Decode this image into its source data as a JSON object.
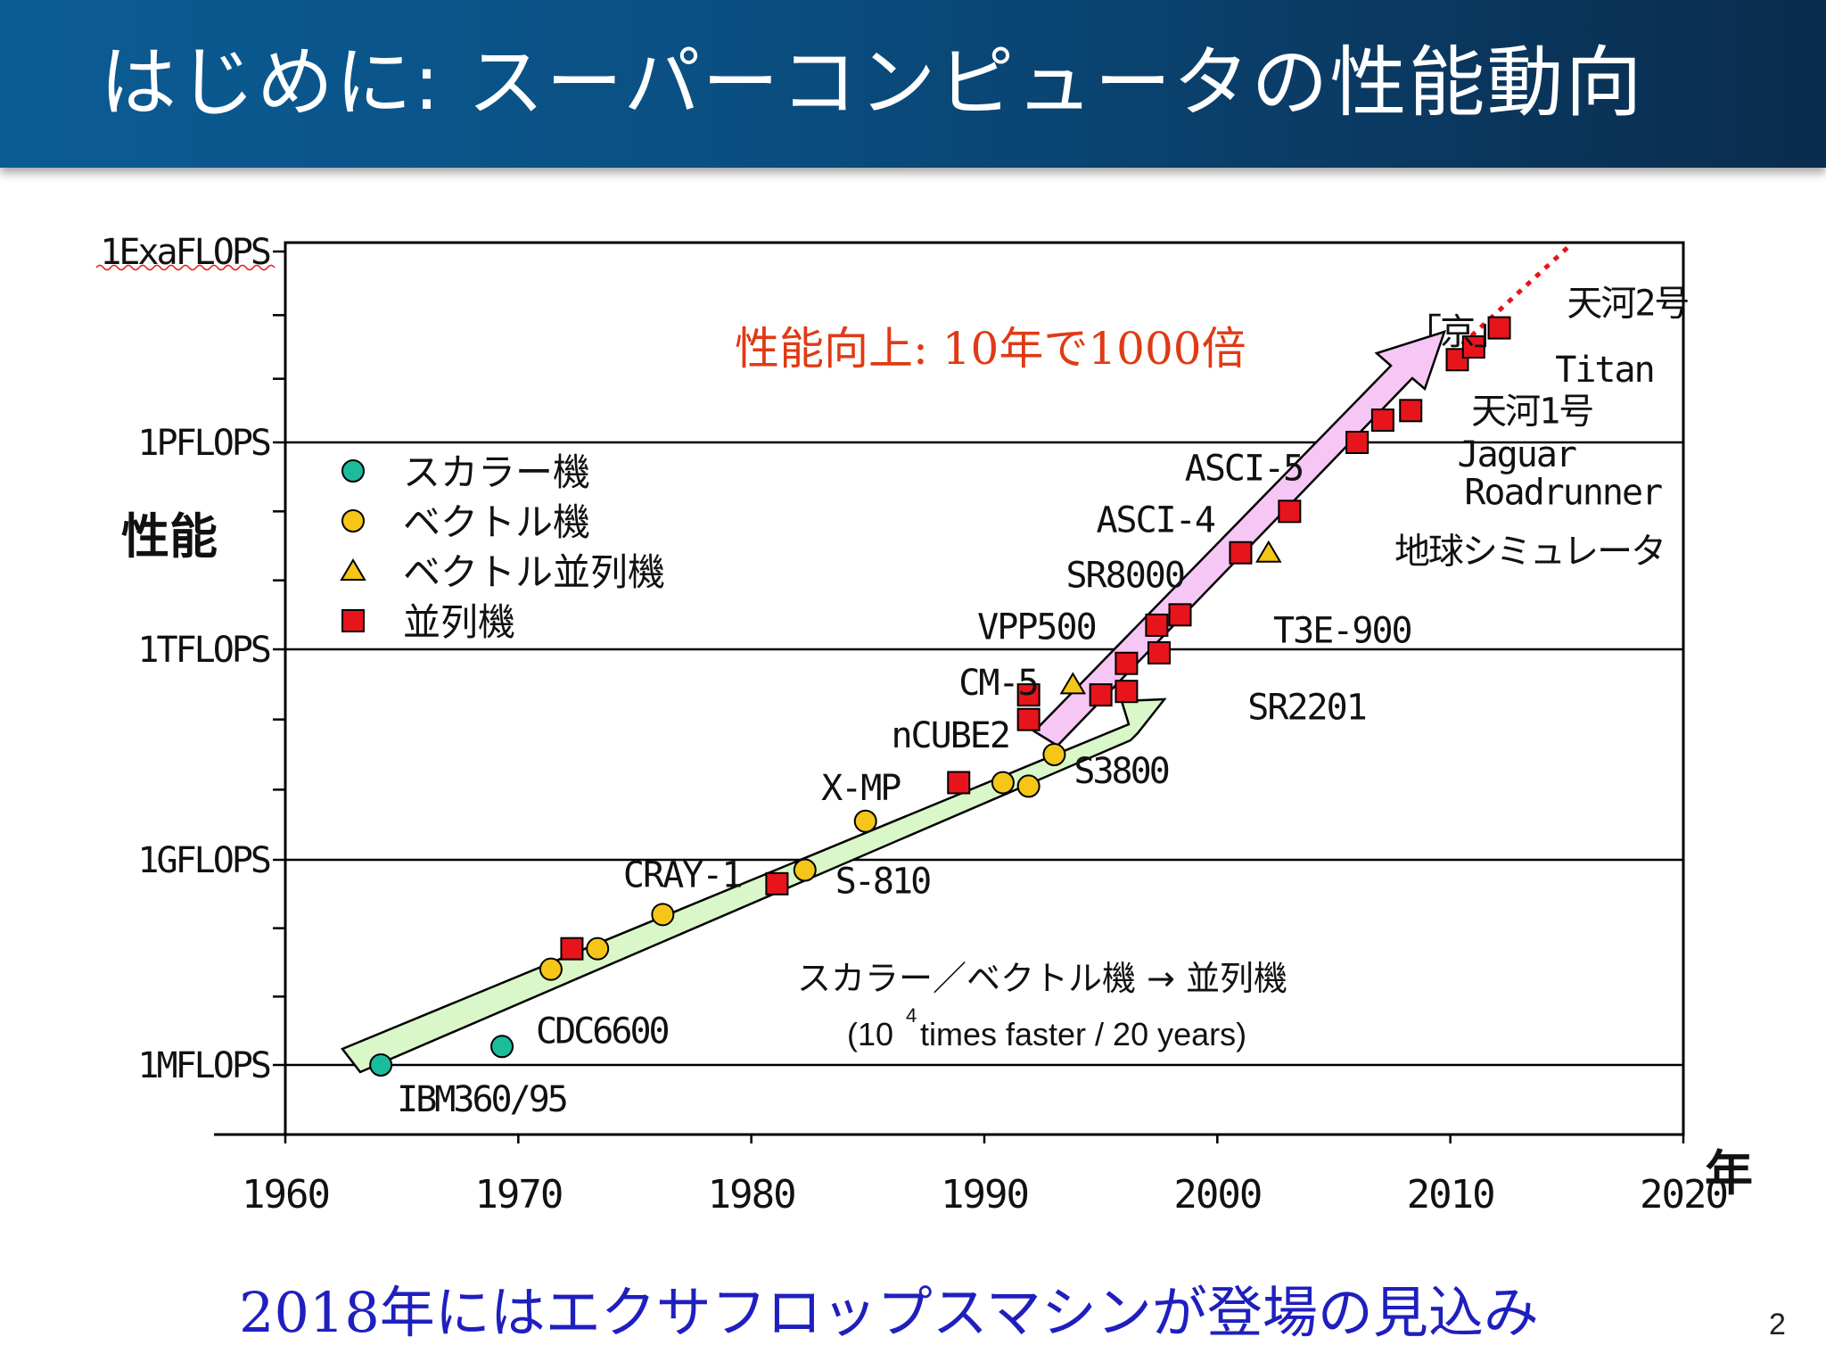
{
  "slide": {
    "title": "はじめに: スーパーコンピュータの性能動向",
    "footer": "2018年にはエクサフロップスマシンが登場の見込み",
    "page_number": "2",
    "colors": {
      "title_bg": "#0b5c94",
      "scalar": "#1abc9c",
      "vector": "#f5c518",
      "vector_parallel": "#f5c518",
      "parallel": "#e8141c",
      "green_arrow": "#d9f7c8",
      "pink_arrow": "#f6c6f4",
      "headline": "#e03a14",
      "footer": "#1f1fbf"
    }
  },
  "chart_data": {
    "type": "scatter",
    "title": "性能向上: 10年で1000倍",
    "xlabel": "年",
    "ylabel": "性能",
    "x_ticks": [
      "1960",
      "1970",
      "1980",
      "1990",
      "2000",
      "2010",
      "2020"
    ],
    "xlim": [
      1960,
      2020
    ],
    "y_ticks": [
      {
        "label": "1MFLOPS",
        "exp": 6
      },
      {
        "label": "1GFLOPS",
        "exp": 9
      },
      {
        "label": "1TFLOPS",
        "exp": 12
      },
      {
        "label": "1PFLOPS",
        "exp": 15
      },
      {
        "label": "1ExaFLOPS",
        "exp": 18
      }
    ],
    "ylim_exp": [
      5,
      18
    ],
    "legend": [
      {
        "name": "スカラー機",
        "marker": "circle",
        "kind": "scalar"
      },
      {
        "name": "ベクトル機",
        "marker": "circle",
        "kind": "vector"
      },
      {
        "name": "ベクトル並列機",
        "marker": "triangle",
        "kind": "vector_parallel"
      },
      {
        "name": "並列機",
        "marker": "square",
        "kind": "parallel"
      }
    ],
    "points": [
      {
        "label": "IBM360/95",
        "year": 1964.1,
        "exp": 6.0,
        "kind": "scalar"
      },
      {
        "label": "CDC6600",
        "year": 1969.3,
        "exp": 6.27,
        "kind": "scalar"
      },
      {
        "label": "",
        "year": 1971.4,
        "exp": 7.4,
        "kind": "vector"
      },
      {
        "label": "",
        "year": 1973.4,
        "exp": 7.7,
        "kind": "vector"
      },
      {
        "label": "",
        "year": 1976.2,
        "exp": 8.2,
        "kind": "vector"
      },
      {
        "label": "",
        "year": 1972.3,
        "exp": 7.7,
        "kind": "parallel"
      },
      {
        "label": "",
        "year": 1981.1,
        "exp": 8.65,
        "kind": "parallel"
      },
      {
        "label": "S-810",
        "year": 1982.3,
        "exp": 8.85,
        "kind": "vector"
      },
      {
        "label": "",
        "year": 1984.9,
        "exp": 9.55,
        "kind": "vector"
      },
      {
        "label": "",
        "year": 1988.9,
        "exp": 10.1,
        "kind": "parallel"
      },
      {
        "label": "",
        "year": 1990.8,
        "exp": 10.1,
        "kind": "vector"
      },
      {
        "label": "",
        "year": 1991.9,
        "exp": 10.05,
        "kind": "vector"
      },
      {
        "label": "S3800",
        "year": 1993.0,
        "exp": 10.5,
        "kind": "vector"
      },
      {
        "label": "",
        "year": 1991.9,
        "exp": 11.0,
        "kind": "parallel"
      },
      {
        "label": "",
        "year": 1991.9,
        "exp": 11.35,
        "kind": "parallel"
      },
      {
        "label": "",
        "year": 1993.8,
        "exp": 11.5,
        "kind": "vector_parallel"
      },
      {
        "label": "",
        "year": 1995.0,
        "exp": 11.35,
        "kind": "parallel"
      },
      {
        "label": "",
        "year": 1996.1,
        "exp": 11.4,
        "kind": "parallel"
      },
      {
        "label": "",
        "year": 1996.1,
        "exp": 11.8,
        "kind": "parallel"
      },
      {
        "label": "",
        "year": 1997.5,
        "exp": 11.95,
        "kind": "parallel"
      },
      {
        "label": "",
        "year": 1997.4,
        "exp": 12.35,
        "kind": "parallel"
      },
      {
        "label": "",
        "year": 1998.4,
        "exp": 12.5,
        "kind": "parallel"
      },
      {
        "label": "",
        "year": 2001.0,
        "exp": 13.4,
        "kind": "parallel"
      },
      {
        "label": "",
        "year": 2002.2,
        "exp": 13.4,
        "kind": "vector_parallel"
      },
      {
        "label": "",
        "year": 2003.1,
        "exp": 14.0,
        "kind": "parallel"
      },
      {
        "label": "",
        "year": 2006.0,
        "exp": 15.0,
        "kind": "parallel"
      },
      {
        "label": "",
        "year": 2007.1,
        "exp": 15.35,
        "kind": "parallel"
      },
      {
        "label": "",
        "year": 2008.3,
        "exp": 15.5,
        "kind": "parallel"
      },
      {
        "label": "",
        "year": 2010.3,
        "exp": 16.3,
        "kind": "parallel"
      },
      {
        "label": "",
        "year": 2011.0,
        "exp": 16.5,
        "kind": "parallel"
      },
      {
        "label": "",
        "year": 2012.1,
        "exp": 16.8,
        "kind": "parallel"
      }
    ],
    "system_labels": [
      {
        "text": "CRAY-1",
        "year": 1974.5,
        "exp": 8.6
      },
      {
        "text": "X-MP",
        "year": 1983.0,
        "exp": 9.85
      },
      {
        "text": "nCUBE2",
        "year": 1986.0,
        "exp": 10.6
      },
      {
        "text": "CM-5",
        "year": 1988.9,
        "exp": 11.35
      },
      {
        "text": "VPP500",
        "year": 1989.7,
        "exp": 12.15
      },
      {
        "text": "SR8000",
        "year": 1993.5,
        "exp": 12.9
      },
      {
        "text": "ASCI-4",
        "year": 1994.8,
        "exp": 13.7
      },
      {
        "text": "ASCI-5",
        "year": 1998.6,
        "exp": 14.45
      },
      {
        "text": "SR2201",
        "year": 2001.3,
        "exp": 11.0
      },
      {
        "text": "T3E-900",
        "year": 2002.4,
        "exp": 12.1
      },
      {
        "text": "地球シミュレータ",
        "year": 2007.6,
        "exp": 13.25
      },
      {
        "text": "Roadrunner",
        "year": 2010.6,
        "exp": 14.1
      },
      {
        "text": "Jaguar",
        "year": 2010.3,
        "exp": 14.65
      },
      {
        "text": "天河1号",
        "year": 2010.9,
        "exp": 15.3
      },
      {
        "text": "Titan",
        "year": 2014.5,
        "exp": 15.95
      },
      {
        "text": "「京」",
        "year": 2008.1,
        "exp": 16.55
      },
      {
        "text": "天河2号",
        "year": 2015.0,
        "exp": 17.0
      }
    ],
    "note_line1": "スカラー／ベクトル機 → 並列機",
    "note_line2a": "(10",
    "note_sup": "4",
    "note_line2b": "times faster / 20 years)"
  }
}
